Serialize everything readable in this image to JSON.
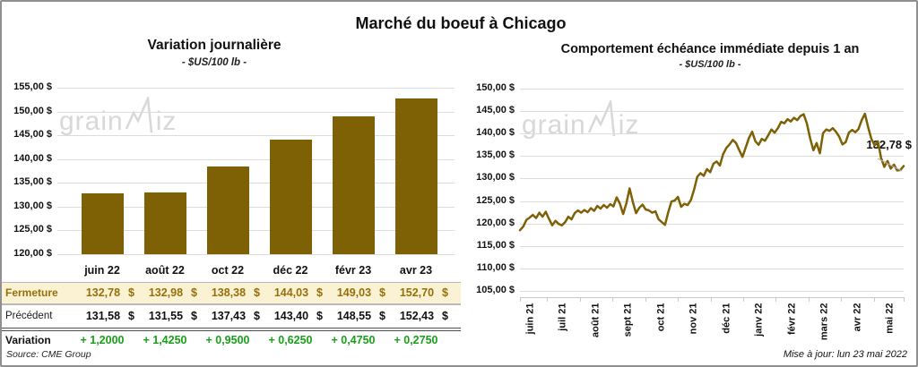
{
  "title": "Marché du boeuf à Chicago",
  "watermark": {
    "prefix": "grain",
    "suffix": "iz"
  },
  "left_panel": {
    "title": "Variation journalière",
    "subtitle": "- $US/100 lb -"
  },
  "right_panel": {
    "title": "Comportement échéance immédiate depuis 1 an",
    "subtitle": "- $US/100 lb -",
    "annotation": "132,78 $"
  },
  "table": {
    "rows": [
      {
        "label": "Fermeture",
        "currency": "$",
        "values": [
          "132,78",
          "132,98",
          "138,38",
          "144,03",
          "149,03",
          "152,70"
        ]
      },
      {
        "label": "Précédent",
        "currency": "$",
        "values": [
          "131,58",
          "131,55",
          "137,43",
          "143,40",
          "148,55",
          "152,43"
        ]
      },
      {
        "label": "Variation",
        "values": [
          "+ 1,2000",
          "+ 1,4250",
          "+ 0,9500",
          "+ 0,6250",
          "+ 0,4750",
          "+ 0,2750"
        ]
      }
    ],
    "source": "Source: CME Group"
  },
  "footer": {
    "update_note": "Mise à jour: lun 23 mai 2022"
  },
  "colors": {
    "accent": "#7E6005",
    "fermeture_text": "#96700A",
    "fermeture_bg": "#FBF1D3",
    "variation_green": "#18A018",
    "gridline": "#DCDCDC",
    "watermark": "#D8D8D8",
    "leader_line": "#AFAFAF"
  },
  "chart_data": [
    {
      "type": "bar",
      "title": "Variation journalière",
      "subtitle": "- $US/100 lb -",
      "xlabel": "",
      "ylabel": "$US/100 lb",
      "categories": [
        "juin 22",
        "août 22",
        "oct 22",
        "déc 22",
        "févr 23",
        "avr 23"
      ],
      "values": [
        132.78,
        132.98,
        138.38,
        144.03,
        149.03,
        152.7
      ],
      "ylim": [
        120,
        155
      ],
      "ytick_step": 5,
      "ytick_labels": [
        "155,00 $",
        "150,00 $",
        "145,00 $",
        "140,00 $",
        "135,00 $",
        "130,00 $",
        "125,00 $",
        "120,00 $"
      ],
      "grid": true,
      "legend": false
    },
    {
      "type": "line",
      "title": "Comportement échéance immédiate depuis 1 an",
      "subtitle": "- $US/100 lb -",
      "xlabel": "",
      "ylabel": "$US/100 lb",
      "x_labels": [
        "juin 21",
        "juil 21",
        "août 21",
        "sept 21",
        "oct 21",
        "nov 21",
        "déc 21",
        "janv 22",
        "févr 22",
        "mars 22",
        "avr 22",
        "mai 22"
      ],
      "ylim": [
        105,
        150
      ],
      "ytick_step": 5,
      "ytick_labels": [
        "150,00 $",
        "145,00 $",
        "140,00 $",
        "135,00 $",
        "130,00 $",
        "125,00 $",
        "120,00 $",
        "115,00 $",
        "110,00 $",
        "105,00 $"
      ],
      "grid": true,
      "legend": false,
      "last_value_label": "132,78 $",
      "last_value": 132.78,
      "values": [
        118.5,
        119.3,
        120.8,
        121.3,
        121.9,
        121.2,
        122.4,
        121.5,
        122.6,
        121.0,
        119.6,
        120.6,
        119.9,
        119.6,
        120.3,
        121.5,
        120.9,
        122.3,
        122.9,
        122.4,
        123.0,
        122.5,
        123.4,
        122.8,
        123.9,
        123.3,
        124.1,
        123.5,
        124.3,
        123.8,
        125.8,
        124.4,
        122.1,
        124.5,
        127.8,
        124.8,
        122.3,
        123.5,
        124.2,
        123.1,
        122.9,
        122.4,
        122.7,
        120.9,
        120.3,
        119.7,
        122.5,
        124.9,
        125.1,
        125.9,
        123.7,
        124.4,
        124.1,
        125.2,
        127.5,
        130.4,
        131.2,
        130.6,
        132.1,
        131.4,
        133.3,
        133.8,
        132.9,
        135.4,
        136.8,
        137.6,
        138.6,
        137.9,
        136.3,
        134.8,
        136.9,
        139.0,
        140.4,
        138.3,
        137.5,
        138.8,
        138.4,
        139.6,
        140.9,
        140.2,
        141.2,
        142.6,
        142.3,
        143.2,
        142.7,
        143.5,
        143.0,
        143.9,
        144.3,
        142.2,
        138.9,
        136.3,
        137.9,
        135.6,
        140.1,
        140.9,
        140.6,
        141.2,
        140.4,
        139.3,
        137.6,
        138.1,
        140.2,
        140.8,
        140.3,
        141.0,
        143.0,
        144.4,
        141.4,
        138.8,
        137.4,
        138.3,
        134.6,
        132.6,
        133.9,
        132.2,
        133.1,
        131.8,
        131.9,
        132.78
      ]
    }
  ]
}
